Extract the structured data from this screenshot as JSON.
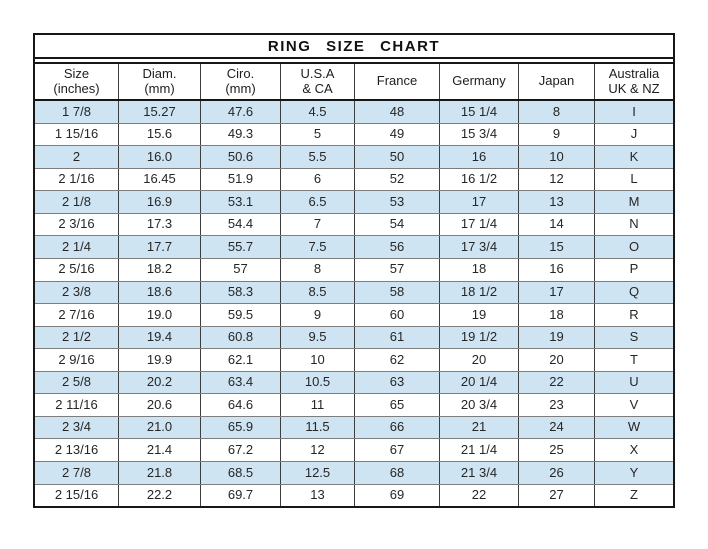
{
  "page": {
    "background": "#ffffff"
  },
  "colors": {
    "row_highlight": "#cfe4f2",
    "border_outer": "#161616",
    "border_row": "#7d7d7d",
    "border_column": "#3d3d3d",
    "text": "#262626"
  },
  "chart_data": {
    "type": "table",
    "title": "RING SIZE CHART",
    "columns": [
      "Size\n(inches)",
      "Diam.\n(mm)",
      "Ciro.\n(mm)",
      "U.S.A\n& CA",
      "France",
      "Germany",
      "Japan",
      "Australia\nUK & NZ"
    ],
    "rows": [
      [
        "1 7/8",
        "15.27",
        "47.6",
        "4.5",
        "48",
        "15 1/4",
        "8",
        "I"
      ],
      [
        "1 15/16",
        "15.6",
        "49.3",
        "5",
        "49",
        "15 3/4",
        "9",
        "J"
      ],
      [
        "2",
        "16.0",
        "50.6",
        "5.5",
        "50",
        "16",
        "10",
        "K"
      ],
      [
        "2 1/16",
        "16.45",
        "51.9",
        "6",
        "52",
        "16 1/2",
        "12",
        "L"
      ],
      [
        "2 1/8",
        "16.9",
        "53.1",
        "6.5",
        "53",
        "17",
        "13",
        "M"
      ],
      [
        "2 3/16",
        "17.3",
        "54.4",
        "7",
        "54",
        "17 1/4",
        "14",
        "N"
      ],
      [
        "2 1/4",
        "17.7",
        "55.7",
        "7.5",
        "56",
        "17 3/4",
        "15",
        "O"
      ],
      [
        "2 5/16",
        "18.2",
        "57",
        "8",
        "57",
        "18",
        "16",
        "P"
      ],
      [
        "2 3/8",
        "18.6",
        "58.3",
        "8.5",
        "58",
        "18 1/2",
        "17",
        "Q"
      ],
      [
        "2 7/16",
        "19.0",
        "59.5",
        "9",
        "60",
        "19",
        "18",
        "R"
      ],
      [
        "2 1/2",
        "19.4",
        "60.8",
        "9.5",
        "61",
        "19 1/2",
        "19",
        "S"
      ],
      [
        "2 9/16",
        "19.9",
        "62.1",
        "10",
        "62",
        "20",
        "20",
        "T"
      ],
      [
        "2 5/8",
        "20.2",
        "63.4",
        "10.5",
        "63",
        "20 1/4",
        "22",
        "U"
      ],
      [
        "2 11/16",
        "20.6",
        "64.6",
        "11",
        "65",
        "20 3/4",
        "23",
        "V"
      ],
      [
        "2 3/4",
        "21.0",
        "65.9",
        "11.5",
        "66",
        "21",
        "24",
        "W"
      ],
      [
        "2 13/16",
        "21.4",
        "67.2",
        "12",
        "67",
        "21 1/4",
        "25",
        "X"
      ],
      [
        "2 7/8",
        "21.8",
        "68.5",
        "12.5",
        "68",
        "21 3/4",
        "26",
        "Y"
      ],
      [
        "2 15/16",
        "22.2",
        "69.7",
        "13",
        "69",
        "22",
        "27",
        "Z"
      ]
    ],
    "layout": {
      "highlight_pattern": "alternating rows starting with first row highlighted light blue",
      "grid": true,
      "legend": "none"
    }
  }
}
